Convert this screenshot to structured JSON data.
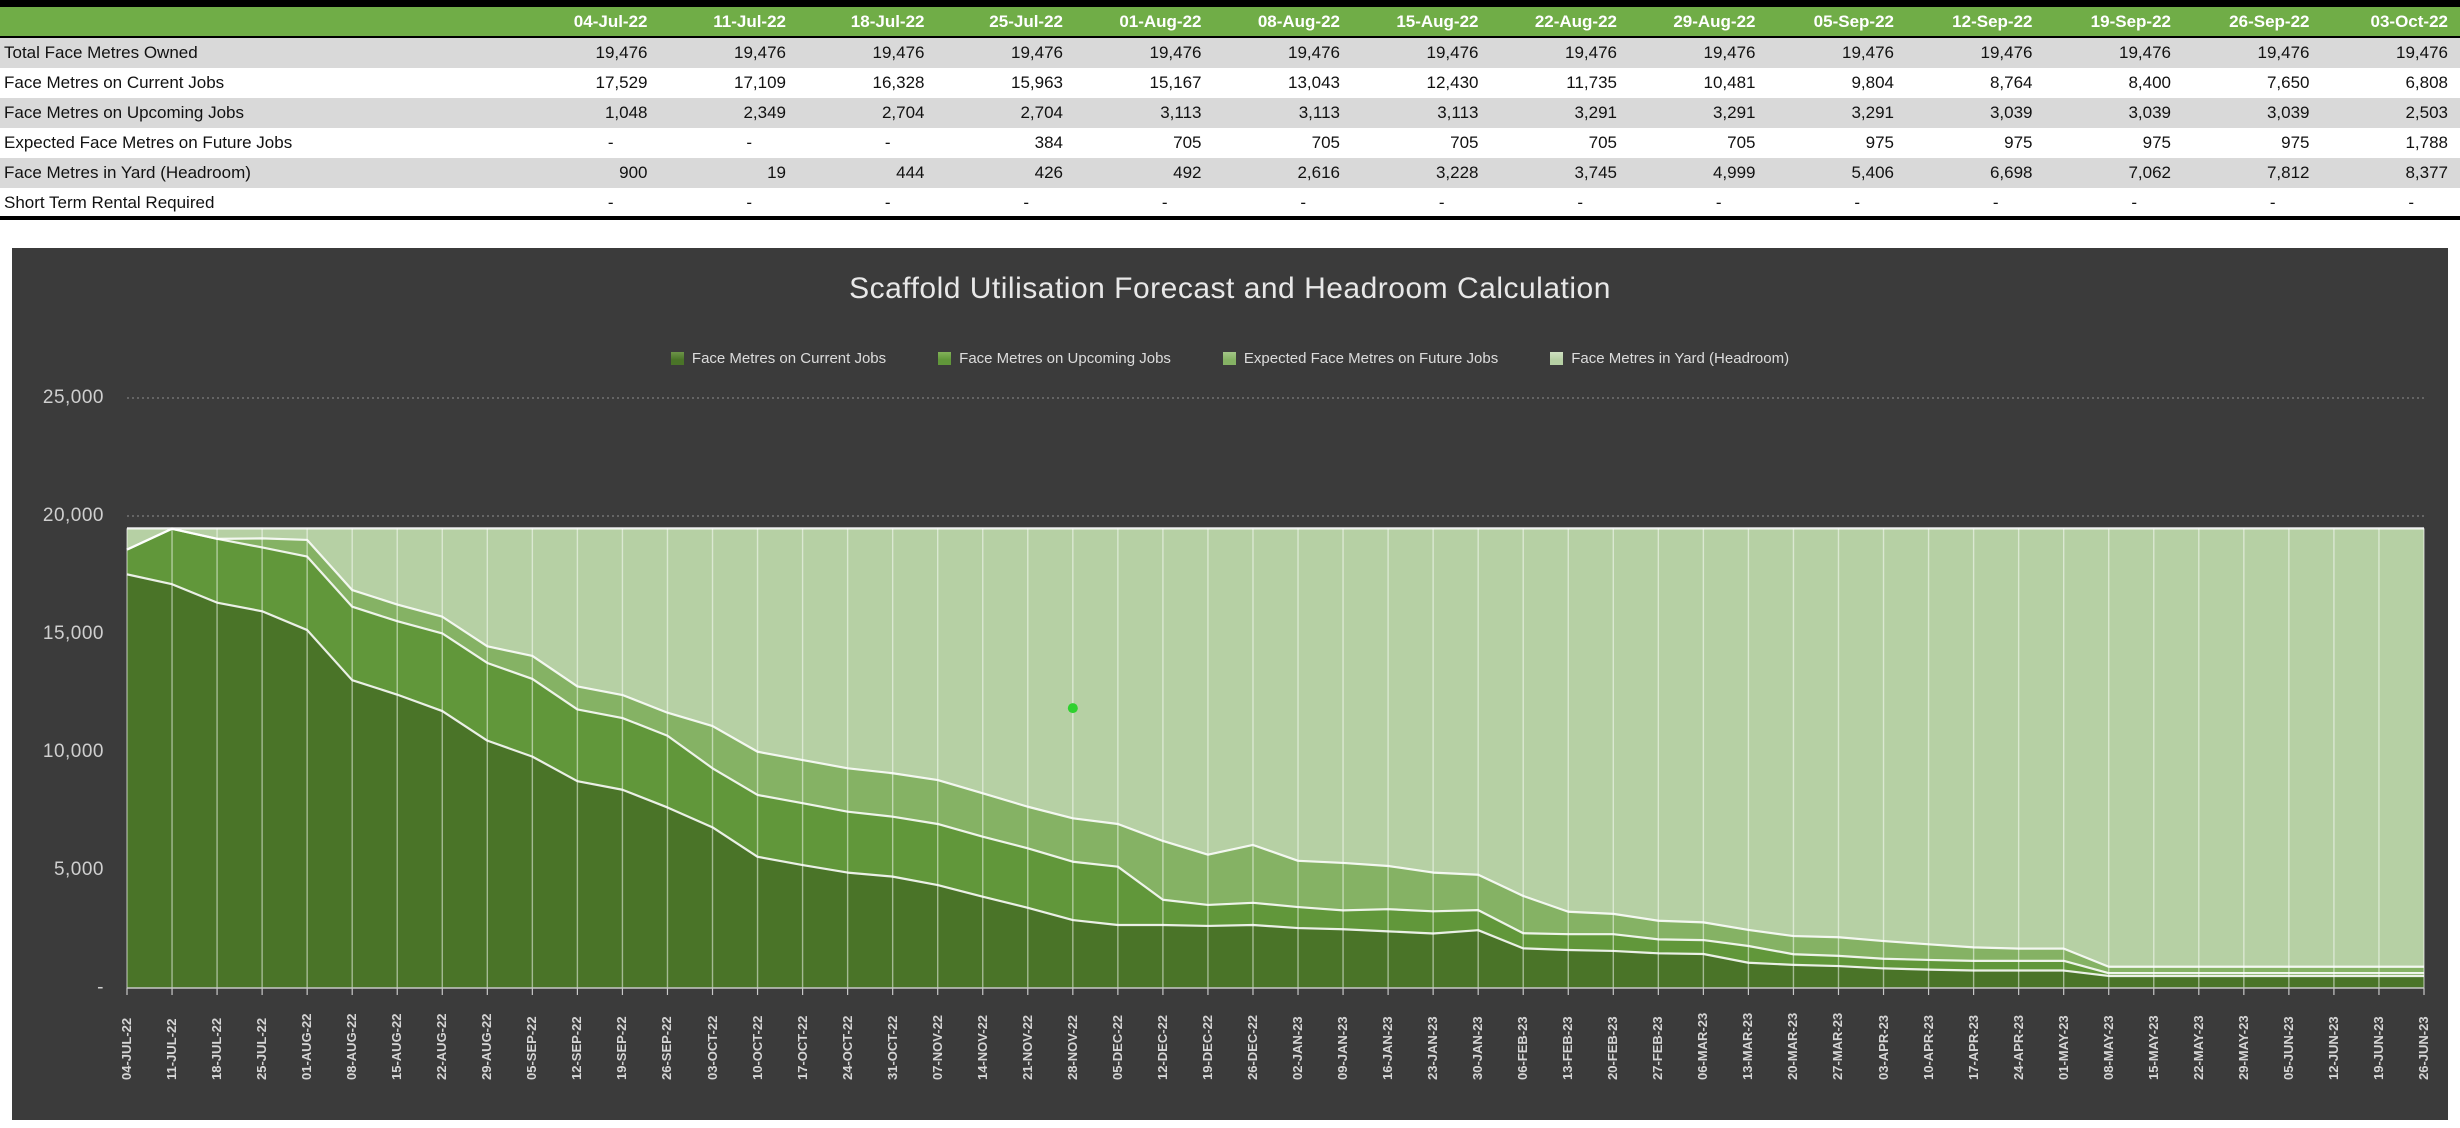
{
  "table": {
    "dates": [
      "04-Jul-22",
      "11-Jul-22",
      "18-Jul-22",
      "25-Jul-22",
      "01-Aug-22",
      "08-Aug-22",
      "15-Aug-22",
      "22-Aug-22",
      "29-Aug-22",
      "05-Sep-22",
      "12-Sep-22",
      "19-Sep-22",
      "26-Sep-22",
      "03-Oct-22"
    ],
    "rows": [
      {
        "label": "Total Face Metres Owned",
        "values": [
          "19,476",
          "19,476",
          "19,476",
          "19,476",
          "19,476",
          "19,476",
          "19,476",
          "19,476",
          "19,476",
          "19,476",
          "19,476",
          "19,476",
          "19,476",
          "19,476"
        ]
      },
      {
        "label": "Face Metres on Current Jobs",
        "values": [
          "17,529",
          "17,109",
          "16,328",
          "15,963",
          "15,167",
          "13,043",
          "12,430",
          "11,735",
          "10,481",
          "9,804",
          "8,764",
          "8,400",
          "7,650",
          "6,808"
        ]
      },
      {
        "label": "Face Metres on Upcoming Jobs",
        "values": [
          "1,048",
          "2,349",
          "2,704",
          "2,704",
          "3,113",
          "3,113",
          "3,113",
          "3,291",
          "3,291",
          "3,291",
          "3,039",
          "3,039",
          "3,039",
          "2,503"
        ]
      },
      {
        "label": "Expected Face Metres on Future Jobs",
        "values": [
          "-",
          "-",
          "-",
          "384",
          "705",
          "705",
          "705",
          "705",
          "705",
          "975",
          "975",
          "975",
          "975",
          "1,788"
        ]
      },
      {
        "label": "Face Metres in Yard (Headroom)",
        "values": [
          "900",
          "19",
          "444",
          "426",
          "492",
          "2,616",
          "3,228",
          "3,745",
          "4,999",
          "5,406",
          "6,698",
          "7,062",
          "7,812",
          "8,377"
        ]
      },
      {
        "label": "Short Term Rental Required",
        "values": [
          "-",
          "-",
          "-",
          "-",
          "-",
          "-",
          "-",
          "-",
          "-",
          "-",
          "-",
          "-",
          "-",
          "-"
        ]
      }
    ]
  },
  "chart": {
    "title": "Scaffold Utilisation Forecast and Headroom Calculation",
    "background_color": "#3b3b3b",
    "marker_dot": {
      "category": "28-NOV-22",
      "value": 11860,
      "color": "#2fd12f"
    }
  },
  "chart_data": {
    "type": "area",
    "stacked": true,
    "title": "Scaffold Utilisation Forecast and Headroom Calculation",
    "xlabel": "",
    "ylabel": "",
    "ylim": [
      0,
      25000
    ],
    "ytick_labels": [
      "25,000",
      "20,000",
      "15,000",
      "10,000",
      "5,000",
      "-"
    ],
    "grid": "horizontal-dotted-top-two",
    "legend_position": "top",
    "total_constant": 19476,
    "categories": [
      "04-JUL-22",
      "11-JUL-22",
      "18-JUL-22",
      "25-JUL-22",
      "01-AUG-22",
      "08-AUG-22",
      "15-AUG-22",
      "22-AUG-22",
      "29-AUG-22",
      "05-SEP-22",
      "12-SEP-22",
      "19-SEP-22",
      "26-SEP-22",
      "03-OCT-22",
      "10-OCT-22",
      "17-OCT-22",
      "24-OCT-22",
      "31-OCT-22",
      "07-NOV-22",
      "14-NOV-22",
      "21-NOV-22",
      "28-NOV-22",
      "05-DEC-22",
      "12-DEC-22",
      "19-DEC-22",
      "26-DEC-22",
      "02-JAN-23",
      "09-JAN-23",
      "16-JAN-23",
      "23-JAN-23",
      "30-JAN-23",
      "06-FEB-23",
      "13-FEB-23",
      "20-FEB-23",
      "27-FEB-23",
      "06-MAR-23",
      "13-MAR-23",
      "20-MAR-23",
      "27-MAR-23",
      "03-APR-23",
      "10-APR-23",
      "17-APR-23",
      "24-APR-23",
      "01-MAY-23",
      "08-MAY-23",
      "15-MAY-23",
      "22-MAY-23",
      "29-MAY-23",
      "05-JUN-23",
      "12-JUN-23",
      "19-JUN-23",
      "26-JUN-23"
    ],
    "series": [
      {
        "name": "Face Metres on Current Jobs",
        "color": "#4a7428",
        "values": [
          17529,
          17109,
          16328,
          15963,
          15167,
          13043,
          12430,
          11735,
          10481,
          9804,
          8764,
          8400,
          7650,
          6808,
          5560,
          5210,
          4890,
          4720,
          4360,
          3870,
          3400,
          2880,
          2670,
          2670,
          2630,
          2670,
          2540,
          2490,
          2400,
          2310,
          2450,
          1680,
          1610,
          1570,
          1470,
          1440,
          1070,
          980,
          930,
          830,
          780,
          740,
          740,
          740,
          510,
          510,
          510,
          510,
          510,
          510,
          510,
          510
        ]
      },
      {
        "name": "Face Metres on Upcoming Jobs",
        "color": "#61973a",
        "values": [
          1048,
          2349,
          2704,
          2704,
          3113,
          3113,
          3113,
          3291,
          3291,
          3291,
          3039,
          3039,
          3039,
          2503,
          2620,
          2620,
          2580,
          2540,
          2590,
          2540,
          2520,
          2470,
          2470,
          1070,
          890,
          940,
          890,
          800,
          940,
          940,
          850,
          640,
          670,
          710,
          590,
          590,
          710,
          450,
          430,
          410,
          410,
          410,
          410,
          410,
          120,
          120,
          120,
          120,
          120,
          120,
          120,
          120
        ]
      },
      {
        "name": "Expected Face Metres on Future Jobs",
        "color": "#85b264",
        "values": [
          0,
          0,
          0,
          384,
          705,
          705,
          705,
          705,
          705,
          975,
          975,
          975,
          975,
          1788,
          1830,
          1830,
          1840,
          1840,
          1860,
          1840,
          1760,
          1840,
          1810,
          2490,
          2130,
          2450,
          1960,
          2010,
          1830,
          1640,
          1500,
          1580,
          950,
          860,
          790,
          750,
          680,
          770,
          790,
          750,
          660,
          570,
          520,
          520,
          270,
          270,
          270,
          270,
          270,
          270,
          270,
          270
        ]
      },
      {
        "name": "Face Metres in Yard (Headroom)",
        "color": "#b6d0a4",
        "values": [
          900,
          19,
          444,
          426,
          492,
          2616,
          3228,
          3745,
          4999,
          5406,
          6698,
          7062,
          7812,
          8377,
          9466,
          9816,
          10166,
          10376,
          10666,
          11226,
          11796,
          12286,
          12526,
          13246,
          13826,
          13416,
          14086,
          14176,
          14306,
          14586,
          14676,
          15576,
          16246,
          16336,
          16626,
          16696,
          17016,
          17276,
          17326,
          17486,
          17626,
          17756,
          17806,
          17806,
          18576,
          18576,
          18576,
          18576,
          18576,
          18576,
          18576,
          18576
        ]
      }
    ]
  }
}
